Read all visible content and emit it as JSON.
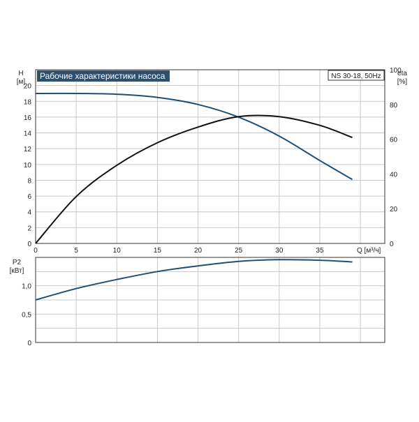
{
  "colors": {
    "background": "#ffffff",
    "grid": "#c8c8c8",
    "axis": "#333333",
    "title_bg": "#2f4f6f",
    "title_text": "#ffffff",
    "head_curve": "#1e4f7a",
    "eta_curve": "#111111",
    "power_curve": "#1e4f7a"
  },
  "chart_data": [
    {
      "type": "line",
      "title": "Рабочие характеристики насоса",
      "model_label": "NS 30-18, 50Hz",
      "y_left_label": "H",
      "y_left_unit": "[м]",
      "y_right_label": "eta",
      "y_right_unit": "[%]",
      "x_label": "Q [м³/ч]",
      "xlim": [
        0,
        43
      ],
      "x_ticks": [
        0,
        5,
        10,
        15,
        20,
        25,
        30,
        35
      ],
      "ylim_left": [
        0,
        22
      ],
      "y_left_ticks": [
        0,
        2,
        4,
        6,
        8,
        10,
        12,
        14,
        16,
        18,
        20
      ],
      "ylim_right": [
        0,
        100
      ],
      "y_right_ticks": [
        0,
        20,
        40,
        60,
        80,
        100
      ],
      "grid": true,
      "series": [
        {
          "key": "head",
          "axis": "left",
          "x": [
            0,
            5,
            10,
            15,
            20,
            25,
            30,
            35,
            39
          ],
          "y": [
            19,
            19,
            18.9,
            18.5,
            17.6,
            16,
            13.6,
            10.5,
            8.1
          ]
        },
        {
          "key": "eta",
          "axis": "right",
          "x": [
            0,
            5,
            10,
            15,
            20,
            25,
            30,
            35,
            39
          ],
          "y": [
            0,
            27,
            45,
            58,
            67,
            73,
            73,
            68,
            61
          ]
        }
      ]
    },
    {
      "type": "line",
      "y_label": "P2",
      "y_unit": "[кВт]",
      "xlim": [
        0,
        43
      ],
      "ylim": [
        0,
        1.5
      ],
      "y_ticks": [
        0,
        0.5,
        1.0
      ],
      "y_tick_labels": [
        "0",
        "0,5",
        "1,0"
      ],
      "grid": true,
      "series": [
        {
          "key": "power",
          "x": [
            0,
            5,
            10,
            15,
            20,
            25,
            30,
            35,
            39
          ],
          "y": [
            0.75,
            0.95,
            1.11,
            1.25,
            1.35,
            1.43,
            1.46,
            1.45,
            1.42
          ]
        }
      ]
    }
  ]
}
